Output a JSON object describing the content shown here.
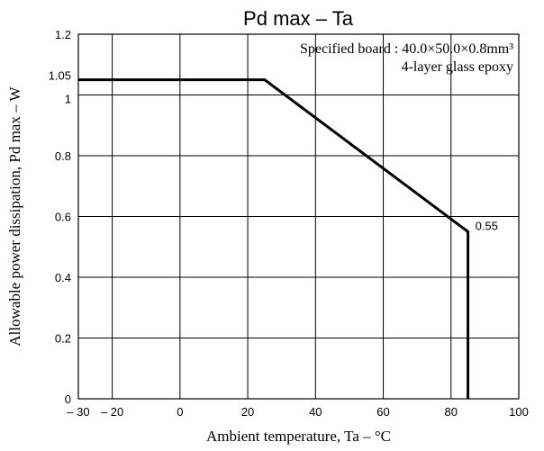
{
  "chart_data": {
    "type": "line",
    "title": "Pd max  –  Ta",
    "xlabel": "Ambient temperature,  Ta  –  °C",
    "ylabel": "Allowable power dissipation,  Pd max  –  W",
    "xlim": [
      -30,
      100
    ],
    "ylim": [
      0,
      1.2
    ],
    "x_ticks": [
      {
        "value": -30,
        "label": "– 30"
      },
      {
        "value": -20,
        "label": "– 20"
      },
      {
        "value": 0,
        "label": "0"
      },
      {
        "value": 20,
        "label": "20"
      },
      {
        "value": 40,
        "label": "40"
      },
      {
        "value": 60,
        "label": "60"
      },
      {
        "value": 80,
        "label": "80"
      },
      {
        "value": 100,
        "label": "100"
      }
    ],
    "y_ticks": [
      {
        "value": 0,
        "label": "0"
      },
      {
        "value": 0.2,
        "label": "0.2"
      },
      {
        "value": 0.4,
        "label": "0.4"
      },
      {
        "value": 0.6,
        "label": "0.6"
      },
      {
        "value": 0.8,
        "label": "0.8"
      },
      {
        "value": 1.0,
        "label": "1"
      },
      {
        "value": 1.05,
        "label": "1.05"
      },
      {
        "value": 1.2,
        "label": "1.2"
      }
    ],
    "grid": true,
    "series": [
      {
        "x": [
          -30,
          25,
          85,
          85
        ],
        "y": [
          1.05,
          1.05,
          0.55,
          0
        ]
      }
    ],
    "annotations": [
      {
        "text": "Specified board : 40.0×50.0×0.8mm³",
        "position": "top-right"
      },
      {
        "text": "4-layer glass epoxy",
        "position": "top-right"
      },
      {
        "text": "0.55",
        "x": 85,
        "y": 0.55
      }
    ]
  }
}
